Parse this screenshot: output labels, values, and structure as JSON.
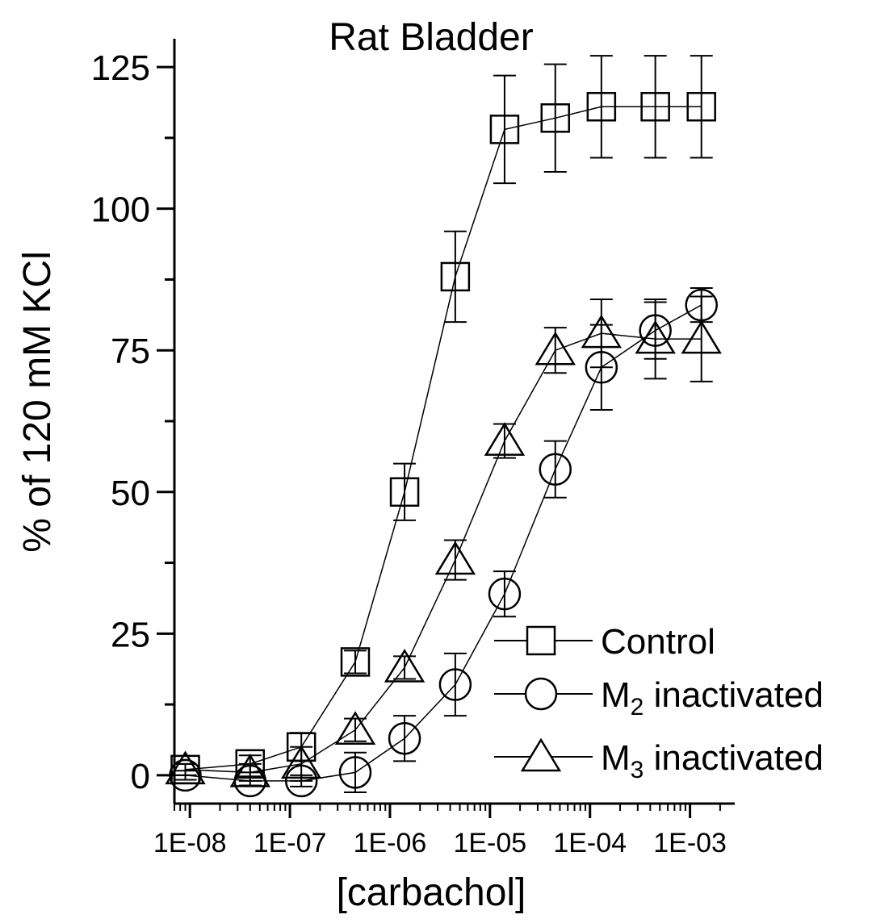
{
  "chart_data": {
    "type": "scatter",
    "title": "Rat Bladder",
    "xlabel": "[carbachol]",
    "ylabel": "% of 120 mM KCl",
    "x_scale": "log",
    "xlim": [
      7e-09,
      0.0028
    ],
    "ylim": [
      -5,
      130
    ],
    "x_ticks": [
      1e-08,
      1e-07,
      1e-06,
      1e-05,
      0.0001,
      0.001
    ],
    "x_tick_labels": [
      "1E-08",
      "1E-07",
      "1E-06",
      "1E-05",
      "1E-04",
      "1E-03"
    ],
    "y_ticks": [
      0,
      25,
      50,
      75,
      100,
      125
    ],
    "y_tick_labels": [
      "0",
      "25",
      "50",
      "75",
      "100",
      "125"
    ],
    "grid": false,
    "legend_position": "bottom-right",
    "series": [
      {
        "name": "Control",
        "marker": "square",
        "legend_parts": [
          "Control"
        ],
        "x": [
          9e-09,
          4e-08,
          1.3e-07,
          4.5e-07,
          1.4e-06,
          4.5e-06,
          1.4e-05,
          4.5e-05,
          0.00013,
          0.00045,
          0.0013
        ],
        "y": [
          1,
          2,
          5,
          20,
          50,
          88,
          114,
          116,
          118,
          118,
          118
        ],
        "err": [
          1,
          1.5,
          2.5,
          2,
          5,
          8,
          9.5,
          9.5,
          9,
          9,
          9
        ]
      },
      {
        "name": "M2 inactivated",
        "marker": "circle",
        "legend_parts": [
          "M",
          "2",
          " inactivated"
        ],
        "x": [
          9e-09,
          4e-08,
          1.3e-07,
          4.5e-07,
          1.4e-06,
          4.5e-06,
          1.4e-05,
          4.5e-05,
          0.00013,
          0.00045,
          0.0013
        ],
        "y": [
          0,
          -1,
          -1,
          0.5,
          6.5,
          16,
          32,
          54,
          72,
          78.5,
          83
        ],
        "err": [
          0.8,
          0.8,
          1,
          3.5,
          4,
          5.5,
          4,
          5,
          7.5,
          5,
          3
        ]
      },
      {
        "name": "M3 inactivated",
        "marker": "triangle",
        "legend_parts": [
          "M",
          "3",
          " inactivated"
        ],
        "x": [
          9e-09,
          4e-08,
          1.3e-07,
          4.5e-07,
          1.4e-06,
          4.5e-06,
          1.4e-05,
          4.5e-05,
          0.00013,
          0.00045,
          0.0013
        ],
        "y": [
          1,
          0.5,
          2,
          8,
          19,
          38,
          59,
          75,
          78,
          77,
          77
        ],
        "err": [
          1,
          1.5,
          3,
          2,
          2,
          3.5,
          3,
          4,
          6,
          7,
          7.5
        ]
      }
    ]
  }
}
